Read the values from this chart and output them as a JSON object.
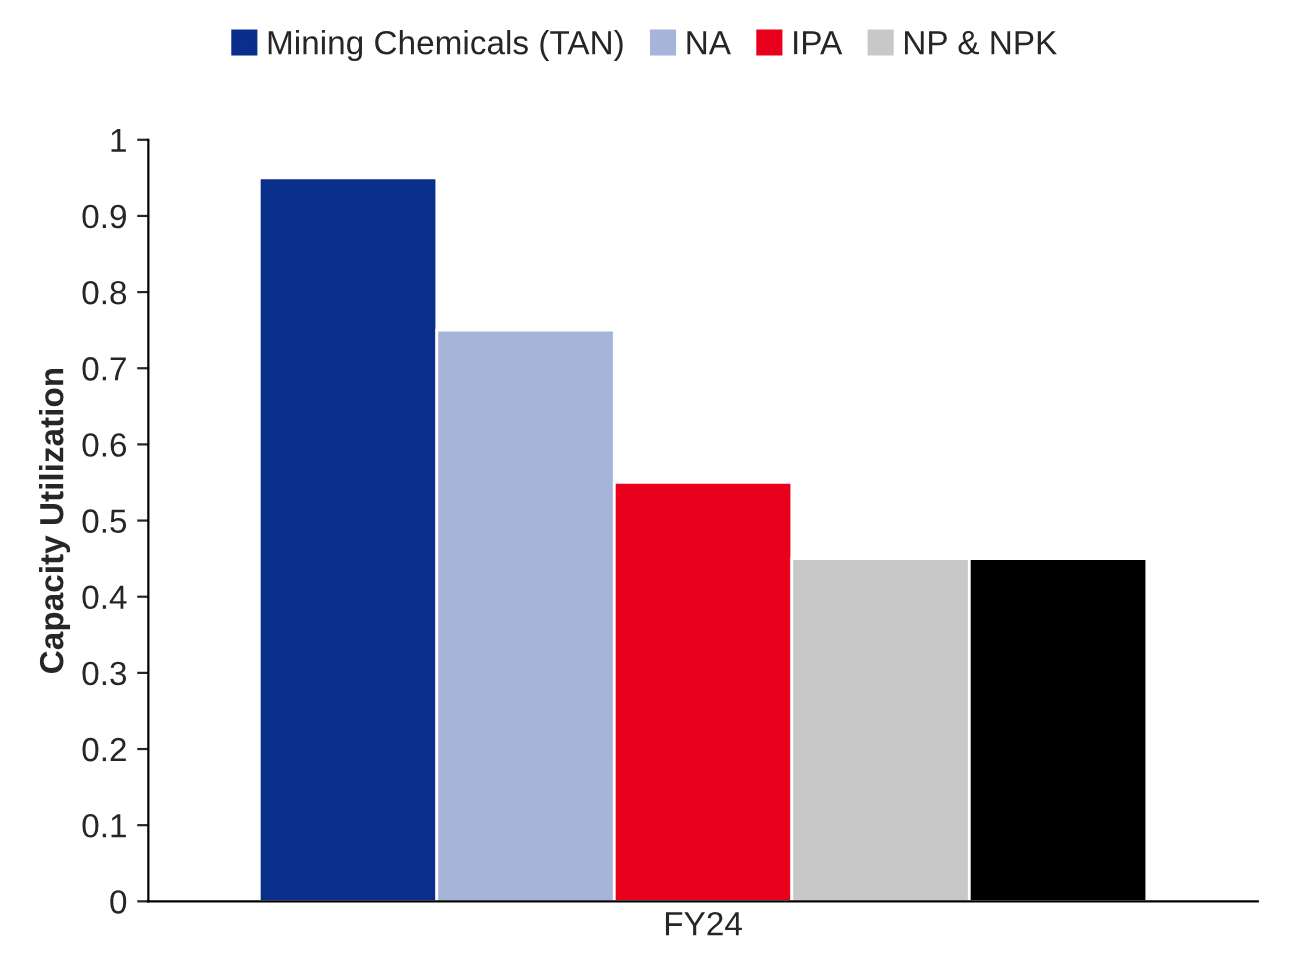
{
  "chart_data": {
    "type": "bar",
    "ylabel": "Capacity Utilization",
    "categories": [
      "FY24"
    ],
    "series": [
      {
        "name": "Mining Chemicals (TAN)",
        "color": "#0a2e8c",
        "values": [
          0.95
        ]
      },
      {
        "name": "NA",
        "color": "#a6b4da",
        "values": [
          0.75
        ]
      },
      {
        "name": "IPA",
        "color": "#e8001c",
        "values": [
          0.55
        ]
      },
      {
        "name": "NP & NPK",
        "color": "#c8c8c8",
        "values": [
          0.45
        ]
      },
      {
        "color": "#000000",
        "values": [
          0.45
        ]
      }
    ],
    "ylim": [
      0,
      1
    ],
    "yticks": [
      0,
      0.1,
      0.2,
      0.3,
      0.4,
      0.5,
      0.6,
      0.7,
      0.8,
      0.9,
      1
    ],
    "legend": "top"
  }
}
